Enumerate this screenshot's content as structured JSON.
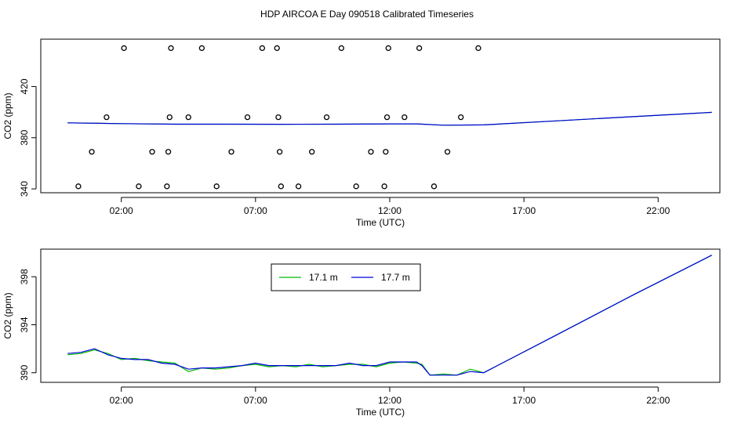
{
  "page_title": "HDP AIRCOA E  Day 090518  Calibrated Timeseries",
  "chart_data": [
    {
      "type": "scatter",
      "xlabel": "Time (UTC)",
      "ylabel": "CO2 (ppm)",
      "xlim": [
        -1.0,
        24.3
      ],
      "ylim": [
        337,
        457
      ],
      "x_ticks": [
        {
          "value": 2,
          "label": "02:00"
        },
        {
          "value": 7,
          "label": "07:00"
        },
        {
          "value": 12,
          "label": "12:00"
        },
        {
          "value": 17,
          "label": "17:00"
        },
        {
          "value": 22,
          "label": "22:00"
        }
      ],
      "y_ticks": [
        {
          "value": 340,
          "label": "340"
        },
        {
          "value": 380,
          "label": "380"
        },
        {
          "value": 420,
          "label": "420"
        }
      ],
      "points": [
        [
          0.4,
          342
        ],
        [
          0.9,
          369
        ],
        [
          1.45,
          396
        ],
        [
          2.1,
          450
        ],
        [
          2.65,
          342
        ],
        [
          3.15,
          369
        ],
        [
          3.7,
          342
        ],
        [
          3.75,
          369
        ],
        [
          3.8,
          396
        ],
        [
          3.85,
          450
        ],
        [
          4.5,
          396
        ],
        [
          5.0,
          450
        ],
        [
          5.55,
          342
        ],
        [
          6.1,
          369
        ],
        [
          6.7,
          396
        ],
        [
          7.25,
          450
        ],
        [
          7.8,
          450
        ],
        [
          7.85,
          396
        ],
        [
          7.9,
          369
        ],
        [
          7.95,
          342
        ],
        [
          8.6,
          342
        ],
        [
          9.1,
          369
        ],
        [
          9.65,
          396
        ],
        [
          10.2,
          450
        ],
        [
          10.75,
          342
        ],
        [
          11.3,
          369
        ],
        [
          11.8,
          342
        ],
        [
          11.85,
          369
        ],
        [
          11.9,
          396
        ],
        [
          11.95,
          450
        ],
        [
          12.55,
          396
        ],
        [
          13.1,
          450
        ],
        [
          13.65,
          342
        ],
        [
          14.15,
          369
        ],
        [
          14.65,
          396
        ],
        [
          15.3,
          450
        ]
      ],
      "series": [
        {
          "name": "17.1 m",
          "color": "#00bb00",
          "x": [
            0.0,
            2.0,
            4.0,
            6.0,
            8.0,
            10.0,
            12.0,
            13.0,
            14.0,
            15.5,
            18.0,
            21.0,
            24.0
          ],
          "y": [
            391.6,
            391.0,
            390.6,
            390.6,
            390.5,
            390.6,
            390.8,
            390.8,
            389.8,
            390.0,
            392.9,
            396.4,
            399.8
          ]
        },
        {
          "name": "17.7 m",
          "color": "#0000dd",
          "x": [
            0.0,
            2.0,
            4.0,
            6.0,
            8.0,
            10.0,
            12.0,
            13.0,
            14.0,
            15.5,
            18.0,
            21.0,
            24.0
          ],
          "y": [
            391.6,
            391.0,
            390.6,
            390.6,
            390.5,
            390.6,
            390.8,
            390.8,
            389.8,
            390.0,
            392.9,
            396.4,
            399.8
          ]
        }
      ]
    },
    {
      "type": "line",
      "xlabel": "Time (UTC)",
      "ylabel": "CO2 (ppm)",
      "xlim": [
        -1.0,
        24.3
      ],
      "ylim": [
        389.2,
        400.3
      ],
      "x_ticks": [
        {
          "value": 2,
          "label": "02:00"
        },
        {
          "value": 7,
          "label": "07:00"
        },
        {
          "value": 12,
          "label": "12:00"
        },
        {
          "value": 17,
          "label": "17:00"
        },
        {
          "value": 22,
          "label": "22:00"
        }
      ],
      "y_ticks": [
        {
          "value": 390,
          "label": "390"
        },
        {
          "value": 394,
          "label": "394"
        },
        {
          "value": 398,
          "label": "398"
        }
      ],
      "legend": {
        "position": "top-center",
        "entries": [
          "17.1 m",
          "17.7 m"
        ]
      },
      "series": [
        {
          "name": "17.1 m",
          "color": "#00bb00",
          "x": [
            0.0,
            0.5,
            1.0,
            1.5,
            2.0,
            2.5,
            3.0,
            3.5,
            4.0,
            4.5,
            5.0,
            5.5,
            6.0,
            6.5,
            7.0,
            7.5,
            8.0,
            8.5,
            9.0,
            9.5,
            10.0,
            10.5,
            11.0,
            11.5,
            12.0,
            12.5,
            13.0,
            13.2,
            13.5,
            14.0,
            14.5,
            15.0,
            15.5,
            18.0,
            21.0,
            24.0
          ],
          "y": [
            391.5,
            391.6,
            391.9,
            391.6,
            391.1,
            391.2,
            391.0,
            390.9,
            390.8,
            390.1,
            390.4,
            390.3,
            390.4,
            390.6,
            390.7,
            390.5,
            390.6,
            390.5,
            390.7,
            390.5,
            390.6,
            390.7,
            390.7,
            390.5,
            390.8,
            390.9,
            390.8,
            390.7,
            389.8,
            389.9,
            389.8,
            390.3,
            390.0,
            392.9,
            396.4,
            399.8
          ]
        },
        {
          "name": "17.7 m",
          "color": "#0000dd",
          "x": [
            0.0,
            0.5,
            1.0,
            1.5,
            2.0,
            2.5,
            3.0,
            3.5,
            4.0,
            4.5,
            5.0,
            5.5,
            6.0,
            6.5,
            7.0,
            7.5,
            8.0,
            8.5,
            9.0,
            9.5,
            10.0,
            10.5,
            11.0,
            11.5,
            12.0,
            12.5,
            13.0,
            13.2,
            13.5,
            14.0,
            14.5,
            15.0,
            15.5,
            18.0,
            21.0,
            24.0
          ],
          "y": [
            391.6,
            391.7,
            392.0,
            391.5,
            391.2,
            391.1,
            391.1,
            390.8,
            390.7,
            390.3,
            390.4,
            390.4,
            390.5,
            390.6,
            390.8,
            390.6,
            390.6,
            390.6,
            390.6,
            390.6,
            390.6,
            390.8,
            390.6,
            390.6,
            390.9,
            390.9,
            390.9,
            390.6,
            389.8,
            389.8,
            389.8,
            390.1,
            390.0,
            392.9,
            396.4,
            399.8
          ]
        }
      ]
    }
  ]
}
